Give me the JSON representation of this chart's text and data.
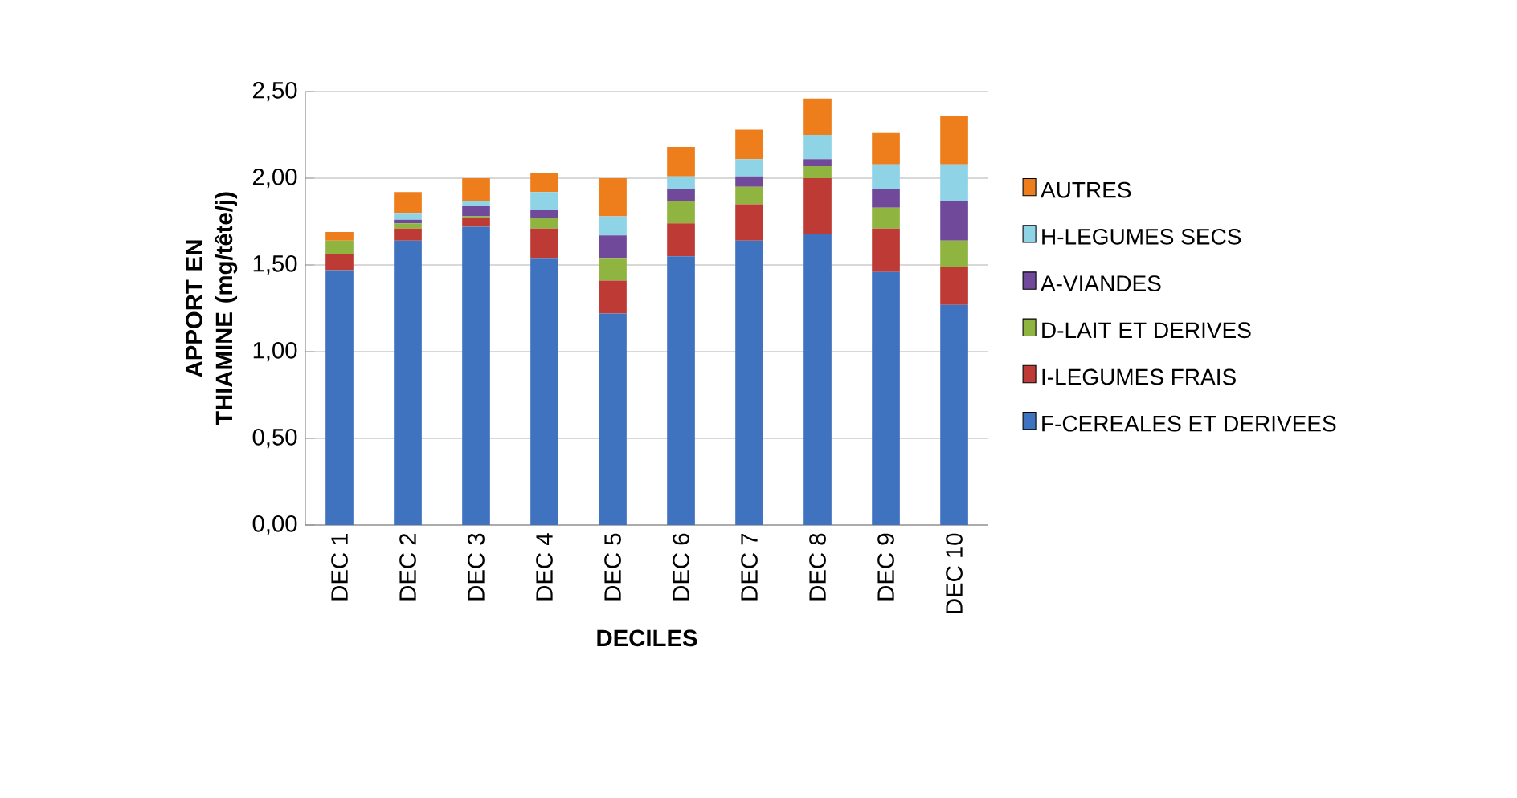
{
  "chart_data": {
    "type": "bar",
    "stacked": true,
    "xlabel": "DECILES",
    "ylabel": "APPORT EN THIAMINE (mg/tête/j)",
    "categories": [
      "DEC 1",
      "DEC 2",
      "DEC 3",
      "DEC 4",
      "DEC 5",
      "DEC 6",
      "DEC 7",
      "DEC 8",
      "DEC 9",
      "DEC 10"
    ],
    "series": [
      {
        "name": "F-CEREALES ET DERIVEES",
        "color": "#3f72bf",
        "values": [
          1.47,
          1.64,
          1.72,
          1.54,
          1.22,
          1.55,
          1.64,
          1.68,
          1.46,
          1.27
        ]
      },
      {
        "name": "I-LEGUMES FRAIS",
        "color": "#be3a34",
        "values": [
          0.09,
          0.07,
          0.05,
          0.17,
          0.19,
          0.19,
          0.21,
          0.32,
          0.25,
          0.22
        ]
      },
      {
        "name": "D-LAIT ET DERIVES",
        "color": "#8fb440",
        "values": [
          0.08,
          0.03,
          0.01,
          0.06,
          0.13,
          0.13,
          0.1,
          0.07,
          0.12,
          0.15
        ]
      },
      {
        "name": "A-VIANDES",
        "color": "#70499a",
        "values": [
          0,
          0.02,
          0.06,
          0.05,
          0.13,
          0.07,
          0.06,
          0.04,
          0.11,
          0.23
        ]
      },
      {
        "name": "H-LEGUMES SECS",
        "color": "#8fd3e6",
        "values": [
          0,
          0.04,
          0.03,
          0.1,
          0.11,
          0.07,
          0.1,
          0.14,
          0.14,
          0.21
        ]
      },
      {
        "name": "AUTRES",
        "color": "#ee7d1c",
        "values": [
          0.05,
          0.12,
          0.13,
          0.11,
          0.22,
          0.17,
          0.17,
          0.21,
          0.18,
          0.28
        ]
      }
    ],
    "ylim": [
      0,
      2.5
    ],
    "yticks": [
      {
        "value": 0,
        "label": "0,00"
      },
      {
        "value": 0.5,
        "label": "0,50"
      },
      {
        "value": 1,
        "label": "1,00"
      },
      {
        "value": 1.5,
        "label": "1,50"
      },
      {
        "value": 2,
        "label": "2,00"
      },
      {
        "value": 2.5,
        "label": "2,50"
      }
    ],
    "grid": "y",
    "legend": "right"
  }
}
